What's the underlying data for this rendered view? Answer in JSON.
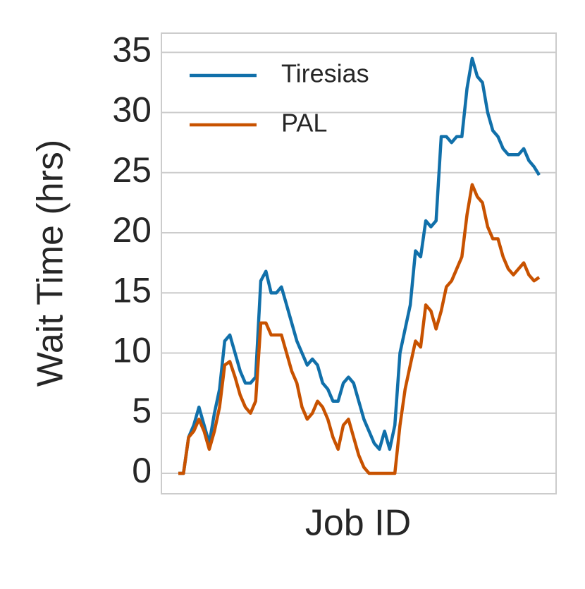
{
  "chart_data": {
    "type": "line",
    "xlabel": "Job ID",
    "ylabel": "Wait Time (hrs)",
    "ylim": [
      -1.7,
      36.6
    ],
    "yticks": [
      0,
      5,
      10,
      15,
      20,
      25,
      30,
      35
    ],
    "grid": true,
    "legend": "upper left",
    "series": [
      {
        "name": "Tiresias",
        "color": "#1170aa",
        "values": [
          0,
          0,
          3,
          4,
          5.5,
          4,
          2.5,
          5,
          7,
          11,
          11.5,
          10,
          8.5,
          7.5,
          7.5,
          8,
          16,
          16.8,
          15,
          15,
          15.5,
          14,
          12.5,
          11,
          10,
          9,
          9.5,
          9,
          7.5,
          7,
          6,
          6,
          7.5,
          8,
          7.5,
          6,
          4.5,
          3.5,
          2.5,
          2,
          3.5,
          2,
          4,
          10,
          12,
          14,
          18.5,
          18,
          21,
          20.5,
          21,
          28,
          28,
          27.5,
          28,
          28,
          32,
          34.5,
          33,
          32.5,
          30,
          28.5,
          28,
          27,
          26.5,
          26.5,
          26.5,
          27,
          26,
          25.5,
          24.8
        ]
      },
      {
        "name": "PAL",
        "color": "#c85200",
        "values": [
          0,
          0,
          3,
          3.5,
          4.5,
          3.5,
          2,
          3.5,
          5.5,
          9,
          9.3,
          8,
          6.5,
          5.5,
          5,
          6,
          12.5,
          12.5,
          11.5,
          11.5,
          11.5,
          10,
          8.5,
          7.5,
          5.5,
          4.5,
          5,
          6,
          5.5,
          4.5,
          3,
          2,
          4,
          4.5,
          3,
          1.5,
          0.5,
          0,
          0,
          0,
          0,
          0,
          0,
          4,
          7,
          9,
          11,
          10.5,
          14,
          13.5,
          12,
          13.5,
          15.5,
          16,
          17,
          18,
          21.5,
          24,
          23,
          22.5,
          20.5,
          19.5,
          19.5,
          18,
          17,
          16.5,
          17,
          17.5,
          16.5,
          16,
          16.3
        ]
      }
    ]
  }
}
